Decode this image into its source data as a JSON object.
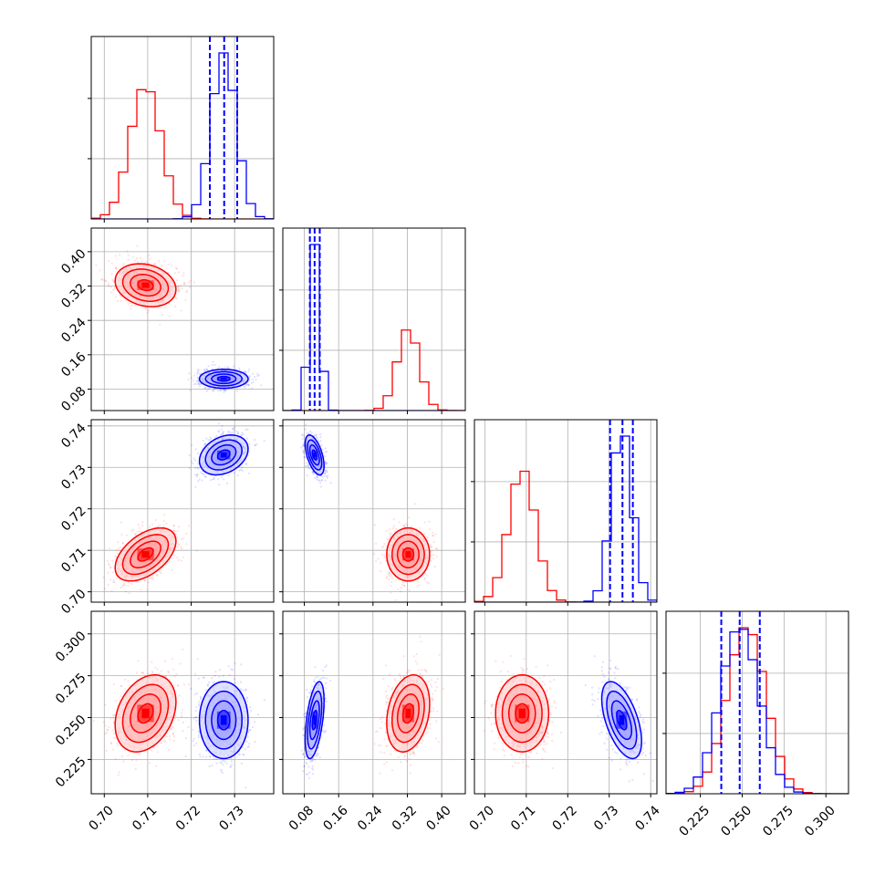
{
  "colors": {
    "red": "#ff0000",
    "blue": "#0000ff",
    "grid": "#b0b0b0"
  },
  "chart_data": {
    "type": "corner",
    "parameters": [
      {
        "range": [
          0.697,
          0.739
        ],
        "ticks": [
          0.7,
          0.71,
          0.72,
          0.73
        ],
        "tick_labels": [
          "0.70",
          "0.71",
          "0.72",
          "0.73"
        ]
      },
      {
        "range": [
          0.03,
          0.455
        ],
        "ticks": [
          0.08,
          0.16,
          0.24,
          0.32,
          0.4
        ],
        "tick_labels": [
          "0.08",
          "0.16",
          "0.24",
          "0.32",
          "0.40"
        ]
      },
      {
        "range": [
          0.6975,
          0.7415
        ],
        "ticks": [
          0.7,
          0.71,
          0.72,
          0.73,
          0.74
        ],
        "tick_labels": [
          "0.70",
          "0.71",
          "0.72",
          "0.73",
          "0.74"
        ]
      },
      {
        "range": [
          0.2045,
          0.3135
        ],
        "ticks": [
          0.225,
          0.25,
          0.275,
          0.3
        ],
        "tick_labels": [
          "0.225",
          "0.250",
          "0.275",
          "0.300"
        ]
      }
    ],
    "series": [
      {
        "color": "#ff0000",
        "mean": [
          0.7095,
          0.322,
          0.709,
          0.2525
        ],
        "std": [
          0.0035,
          0.025,
          0.0032,
          0.0115
        ],
        "correlation": [
          [
            1,
            -0.2,
            0.5,
            0.3
          ],
          [
            -0.2,
            1,
            0,
            0.25
          ],
          [
            0.5,
            0,
            1,
            0
          ],
          [
            0.3,
            0.25,
            0,
            1
          ]
        ],
        "quantile_lines": []
      },
      {
        "color": "#0000ff",
        "mean": [
          0.7275,
          0.104,
          0.733,
          0.2485
        ],
        "std": [
          0.0028,
          0.011,
          0.0024,
          0.0115
        ],
        "correlation": [
          [
            1,
            0,
            0.3,
            0
          ],
          [
            0,
            1,
            -0.55,
            0.5
          ],
          [
            0.3,
            -0.55,
            1,
            -0.55
          ],
          [
            0,
            0.5,
            -0.55,
            1
          ]
        ],
        "quantile_lines": [
          [
            0.7243,
            0.7276,
            0.7306
          ],
          [
            0.093,
            0.104,
            0.116
          ],
          [
            0.7302,
            0.7332,
            0.7357
          ],
          [
            0.2375,
            0.2485,
            0.2605
          ]
        ]
      }
    ],
    "histogram_bins": 20,
    "contour_levels": [
      0.5,
      1.0,
      1.5,
      2.0
    ],
    "grid": true
  }
}
